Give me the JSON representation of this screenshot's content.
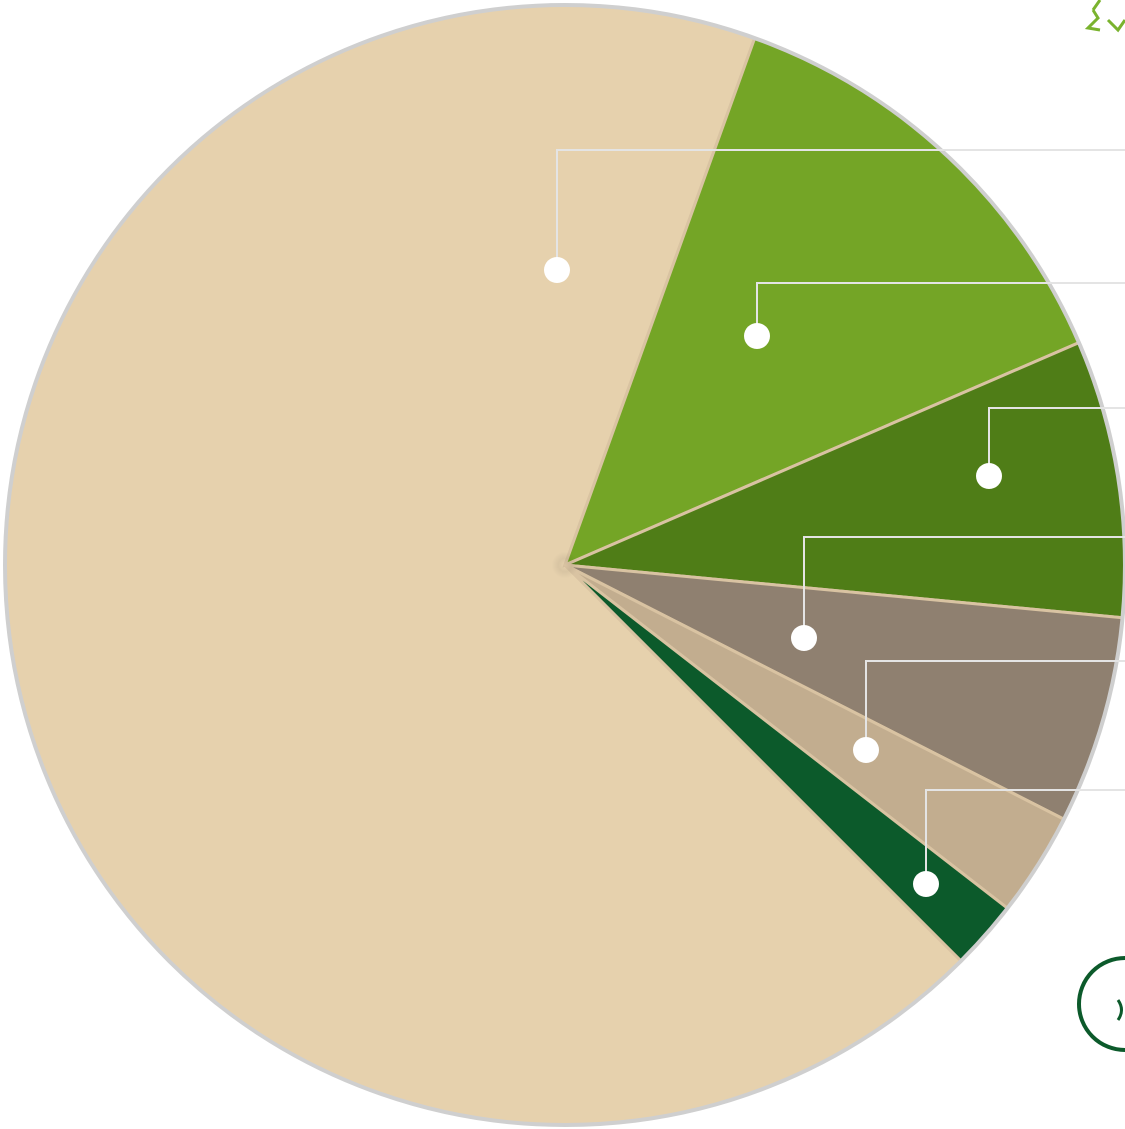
{
  "chart_data": {
    "type": "pie",
    "values": [
      68,
      13,
      8,
      6,
      3,
      2
    ],
    "colors": [
      "#e6d1ad",
      "#74a526",
      "#4f7d17",
      "#8f8070",
      "#c2ad8f",
      "#0c5a2b"
    ]
  }
}
